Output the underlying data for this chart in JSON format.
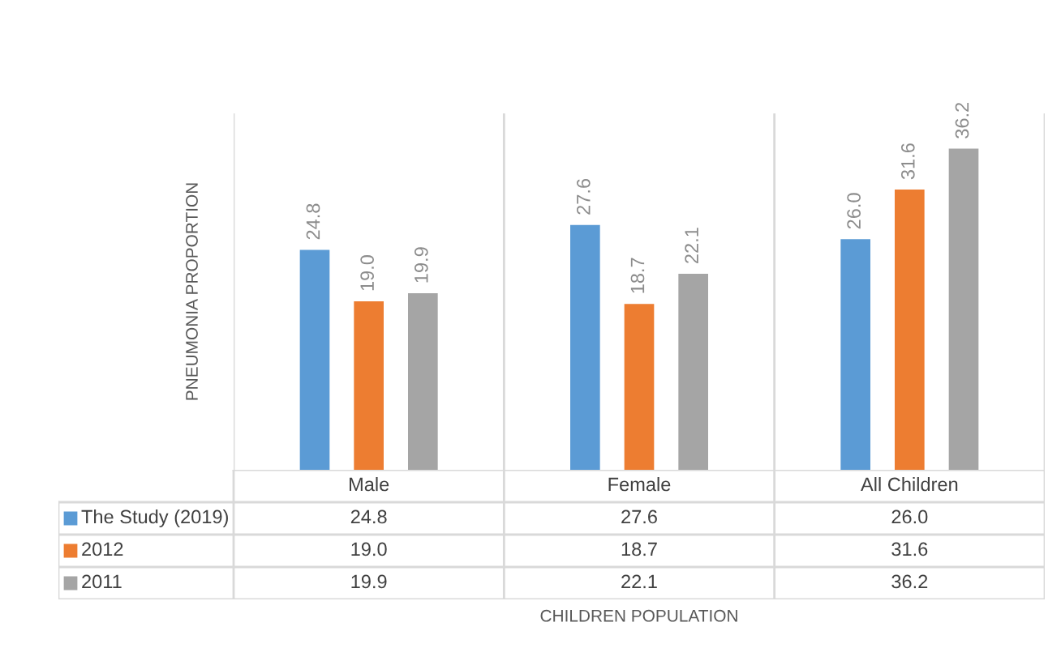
{
  "chart_data": {
    "type": "bar",
    "ylabel": "PNEUMONIA PROPORTION",
    "annotations": [
      "CHILDREN POPULATION"
    ],
    "categories": [
      "Male",
      "Female",
      "All Children"
    ],
    "series": [
      {
        "name": "The Study (2019)",
        "color": "#5b9bd5",
        "values": [
          24.8,
          27.6,
          26.0
        ],
        "value_labels": [
          "24.8",
          "27.6",
          "26.0"
        ]
      },
      {
        "name": "2012",
        "color": "#ed7d31",
        "values": [
          19.0,
          18.7,
          31.6
        ],
        "value_labels": [
          "19.0",
          "18.7",
          "31.6"
        ]
      },
      {
        "name": "2011",
        "color": "#a5a5a5",
        "values": [
          19.9,
          22.1,
          36.2
        ],
        "value_labels": [
          "19.9",
          "22.1",
          "36.2"
        ]
      }
    ],
    "legend": "bottom"
  }
}
